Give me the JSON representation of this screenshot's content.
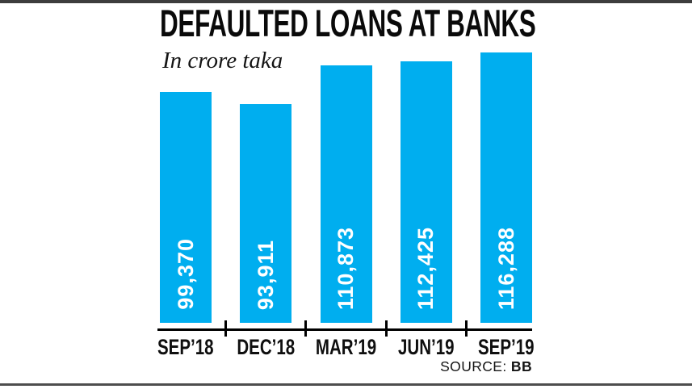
{
  "page": {
    "title": "DEFAULTED LOANS AT BANKS",
    "subtitle": "In crore taka",
    "source_label": "SOURCE:",
    "source_value": "BB"
  },
  "colors": {
    "bar": "#00AEEF",
    "value_label": "#FFFFFF",
    "axis": "#000000",
    "rule": "#3D3D3D",
    "text": "#111111"
  },
  "chart_data": {
    "type": "bar",
    "title": "DEFAULTED LOANS AT BANKS",
    "unit_label": "In crore taka",
    "categories": [
      "SEP’18",
      "DEC’18",
      "MAR’19",
      "JUN’19",
      "SEP’19"
    ],
    "values": [
      99370,
      93911,
      110873,
      112425,
      116288
    ],
    "value_labels": [
      "99,370",
      "93,911",
      "110,873",
      "112,425",
      "116,288"
    ],
    "ylim": [
      0,
      116288
    ],
    "grid": false,
    "legend": false,
    "value_label_position": "inside-bottom-rotated",
    "source": "BB"
  }
}
